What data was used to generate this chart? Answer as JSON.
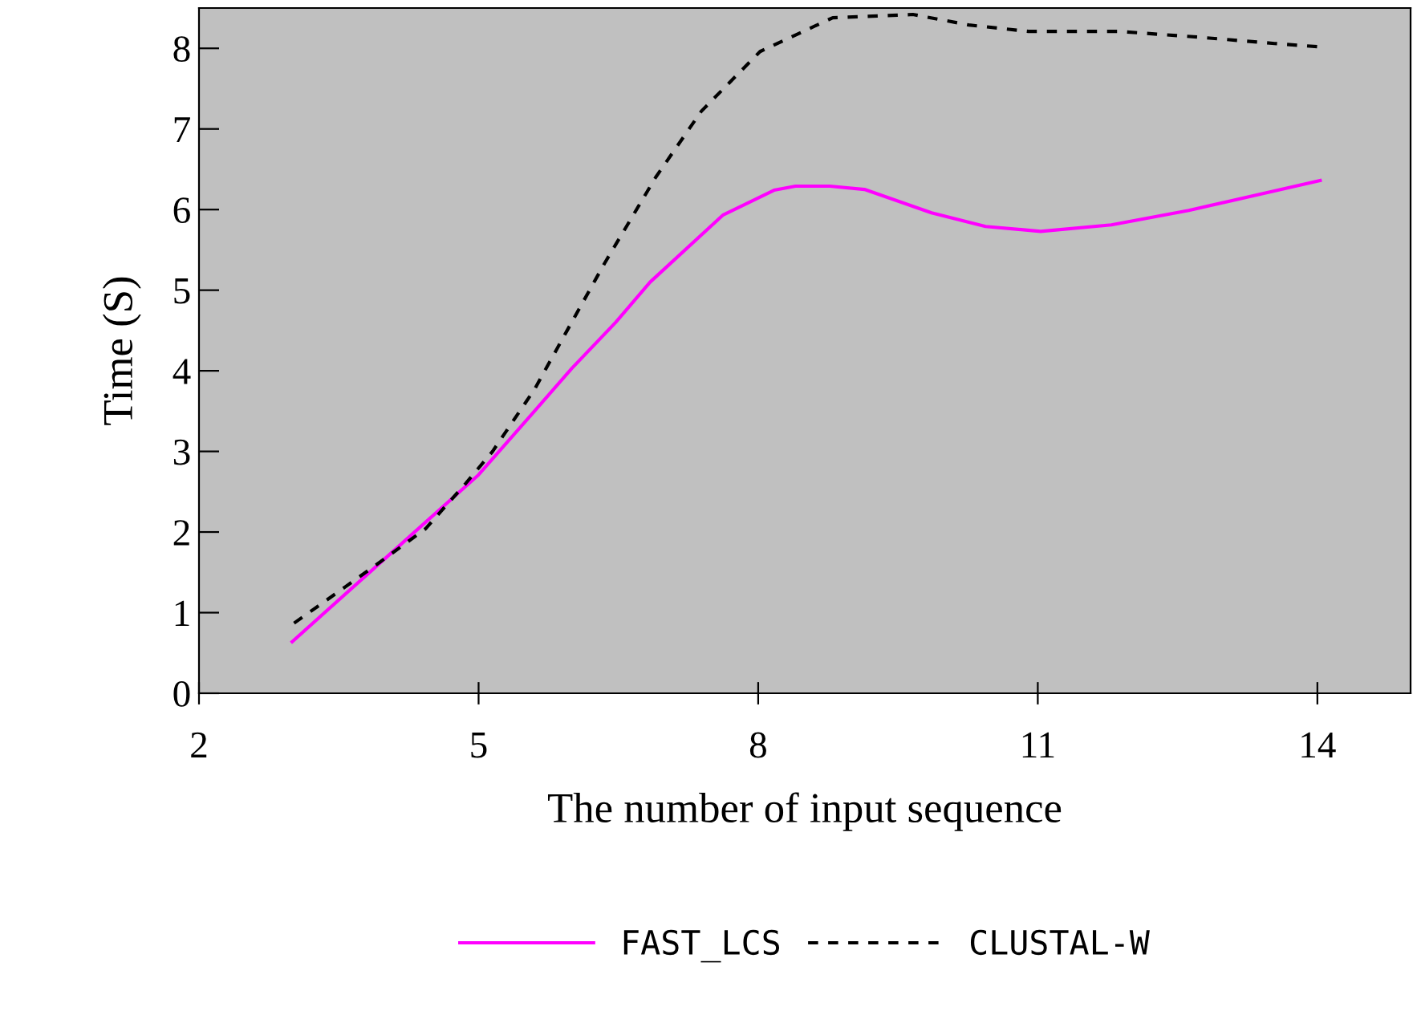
{
  "chart_data": {
    "type": "line",
    "xlabel": "The number of input sequence",
    "ylabel": "Time (S)",
    "xlim": [
      2,
      15
    ],
    "xticks": [
      2,
      5,
      8,
      11,
      14
    ],
    "ylim": [
      0,
      8.5
    ],
    "yticks": [
      0,
      1,
      2,
      3,
      4,
      5,
      6,
      7,
      8
    ],
    "grid": false,
    "legend": "bottom",
    "marker": "none",
    "series": [
      {
        "name": "FAST_LCS",
        "color": "#ff00ff",
        "line_style": "solid",
        "x": [
          3.0,
          5.0,
          5.6,
          6.0,
          6.47,
          6.84,
          7.62,
          8.17,
          8.4,
          8.77,
          9.14,
          9.86,
          10.44,
          11.03,
          11.79,
          12.62,
          14.03
        ],
        "values": [
          0.64,
          2.71,
          3.5,
          4.03,
          4.6,
          5.1,
          5.93,
          6.24,
          6.29,
          6.29,
          6.25,
          5.96,
          5.79,
          5.73,
          5.81,
          5.99,
          6.36
        ]
      },
      {
        "name": "CLUSTAL-W",
        "color": "#000000",
        "line_style": "dashed",
        "x": [
          3.02,
          3.57,
          3.91,
          4.43,
          4.86,
          5.15,
          5.6,
          5.95,
          6.35,
          6.9,
          7.39,
          8.02,
          8.8,
          9.66,
          10.26,
          10.9,
          11.87,
          12.71,
          13.54,
          14.0
        ],
        "values": [
          0.87,
          1.32,
          1.6,
          2.04,
          2.6,
          3.0,
          3.77,
          4.5,
          5.33,
          6.4,
          7.22,
          7.96,
          8.38,
          8.42,
          8.29,
          8.21,
          8.21,
          8.14,
          8.06,
          8.02
        ]
      }
    ]
  }
}
